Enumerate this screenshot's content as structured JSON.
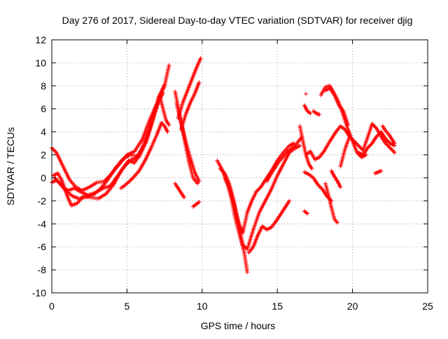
{
  "chart_data": {
    "type": "scatter",
    "title": "Day 276 of 2017, Sidereal Day-to-day VTEC variation (SDTVAR) for receiver djig",
    "xlabel": "GPS time / hours",
    "ylabel": "SDTVAR / TECUs",
    "xlim": [
      0,
      25
    ],
    "ylim": [
      -10,
      12
    ],
    "xticks": [
      "0",
      "5",
      "10",
      "15",
      "20",
      "25"
    ],
    "yticks": [
      "-10",
      "-8",
      "-6",
      "-4",
      "-2",
      "0",
      "2",
      "4",
      "6",
      "8",
      "10",
      "12"
    ],
    "grid": true,
    "marker": "plus",
    "color": "#ff0000",
    "series": [
      {
        "x": [
          0.0,
          0.3,
          0.6,
          0.9,
          1.2,
          1.6,
          2.0,
          2.5,
          3.0,
          3.5,
          4.0,
          4.5,
          5.0,
          5.5,
          6.0,
          6.5,
          7.0,
          7.5,
          7.8
        ],
        "y": [
          2.6,
          2.2,
          1.4,
          0.6,
          -0.2,
          -0.8,
          -1.1,
          -0.8,
          -0.4,
          -0.3,
          0.4,
          1.2,
          2.0,
          2.3,
          3.3,
          5.0,
          6.5,
          8.0,
          9.8
        ]
      },
      {
        "x": [
          0.0,
          0.3,
          0.6,
          1.0,
          1.4,
          1.8,
          2.2,
          2.7,
          3.2,
          3.7,
          4.2,
          4.7,
          5.2,
          5.7,
          6.2,
          6.7,
          7.1,
          7.5
        ],
        "y": [
          -0.4,
          -0.2,
          -0.6,
          -1.2,
          -1.6,
          -1.8,
          -1.7,
          -1.5,
          -1.0,
          -0.2,
          0.8,
          1.6,
          2.0,
          1.9,
          3.0,
          5.0,
          7.0,
          8.1
        ]
      },
      {
        "x": [
          0.1,
          0.4,
          0.7,
          1.0,
          1.3,
          1.7,
          2.1,
          2.6,
          3.1,
          3.6,
          4.1,
          4.6,
          5.1,
          5.5,
          6.0,
          6.5,
          7.0,
          7.4
        ],
        "y": [
          0.2,
          0.4,
          -0.3,
          -1.5,
          -2.4,
          -2.2,
          -1.6,
          -1.7,
          -1.8,
          -1.4,
          -0.6,
          0.6,
          1.5,
          1.3,
          2.5,
          4.5,
          6.3,
          7.4
        ]
      },
      {
        "x": [
          0.2,
          0.5,
          0.8,
          1.1,
          1.5,
          1.9,
          2.4,
          2.9,
          3.4,
          3.9,
          4.4,
          4.9,
          5.3,
          5.8,
          6.3,
          6.8,
          7.2
        ],
        "y": [
          0.0,
          -0.4,
          -0.9,
          -1.1,
          -0.9,
          -1.2,
          -1.5,
          -1.3,
          -0.9,
          -0.7,
          0.2,
          1.1,
          1.6,
          1.8,
          3.2,
          5.4,
          7.2
        ]
      },
      {
        "x": [
          4.6,
          5.0,
          5.4,
          5.8,
          6.2,
          6.6,
          7.0,
          7.3,
          7.5,
          7.7
        ],
        "y": [
          -0.9,
          -0.5,
          0.0,
          0.6,
          1.5,
          2.6,
          3.8,
          4.8,
          4.5,
          4.0
        ]
      },
      {
        "x": [
          7.2,
          7.4,
          7.6,
          7.8
        ],
        "y": [
          7.0,
          6.0,
          5.0,
          4.6
        ]
      },
      {
        "x": [
          8.2,
          8.5,
          8.8,
          9.1,
          9.4,
          9.7
        ],
        "y": [
          7.5,
          5.5,
          3.5,
          1.5,
          0.0,
          -0.5
        ]
      },
      {
        "x": [
          8.3,
          8.6,
          8.9,
          9.2,
          9.5,
          9.8
        ],
        "y": [
          6.5,
          4.8,
          3.2,
          1.8,
          0.5,
          -0.3
        ]
      },
      {
        "x": [
          8.4,
          8.7,
          9.0,
          9.3,
          9.6,
          9.9
        ],
        "y": [
          5.2,
          6.5,
          7.5,
          8.5,
          9.5,
          10.4
        ]
      },
      {
        "x": [
          8.6,
          8.9,
          9.2,
          9.5,
          9.8
        ],
        "y": [
          4.2,
          5.5,
          6.5,
          7.3,
          8.3
        ]
      },
      {
        "x": [
          8.2,
          8.5,
          8.8
        ],
        "y": [
          -0.5,
          -1.1,
          -1.7
        ]
      },
      {
        "x": [
          9.4,
          9.6,
          9.8
        ],
        "y": [
          -2.5,
          -2.3,
          -2.1
        ]
      },
      {
        "x": [
          11.0,
          11.3,
          11.6,
          11.9,
          12.2,
          12.5,
          12.8,
          13.0
        ],
        "y": [
          1.5,
          0.8,
          -0.2,
          -1.5,
          -3.5,
          -5.0,
          -6.5,
          -8.2
        ]
      },
      {
        "x": [
          11.2,
          11.5,
          11.8,
          12.1,
          12.4,
          12.7,
          13.0,
          13.4,
          13.8,
          14.2,
          14.6,
          15.0,
          15.4,
          15.8,
          16.2,
          16.5
        ],
        "y": [
          0.8,
          0.4,
          -0.5,
          -2.0,
          -4.0,
          -5.8,
          -6.2,
          -4.5,
          -3.0,
          -2.0,
          -1.0,
          0.2,
          1.2,
          2.2,
          2.6,
          2.8
        ]
      },
      {
        "x": [
          11.5,
          11.8,
          12.1,
          12.4,
          12.7,
          13.0,
          13.3,
          13.6,
          13.9,
          14.2,
          14.6,
          15.0,
          15.4,
          15.8,
          16.1
        ],
        "y": [
          0.0,
          -0.8,
          -2.2,
          -3.8,
          -4.8,
          -3.0,
          -2.0,
          -1.2,
          -0.8,
          -0.2,
          0.6,
          1.5,
          2.2,
          2.8,
          3.0
        ]
      },
      {
        "x": [
          13.1,
          13.4,
          13.7,
          14.0,
          14.3,
          14.6,
          14.9,
          15.2,
          15.5,
          15.8
        ],
        "y": [
          -6.5,
          -6.0,
          -5.0,
          -4.2,
          -4.5,
          -4.3,
          -3.8,
          -3.2,
          -2.6,
          -2.0
        ]
      },
      {
        "x": [
          14.3,
          14.7,
          15.1,
          15.5,
          15.9,
          16.3,
          16.6
        ],
        "y": [
          -0.3,
          0.6,
          1.4,
          2.0,
          2.5,
          3.0,
          3.5
        ]
      },
      {
        "x": [
          16.5,
          16.7,
          16.9,
          17.1,
          17.3
        ],
        "y": [
          4.5,
          3.2,
          2.0,
          1.2,
          0.8
        ]
      },
      {
        "x": [
          16.8,
          17.1,
          17.4,
          17.7,
          18.0,
          18.3,
          18.6
        ],
        "y": [
          0.5,
          0.3,
          0.0,
          -0.6,
          -1.0,
          -1.6,
          -2.0
        ]
      },
      {
        "x": [
          16.9,
          17.2,
          17.5,
          17.8,
          18.1,
          18.5,
          18.9,
          19.2,
          19.5,
          19.8
        ],
        "y": [
          2.0,
          2.3,
          1.6,
          1.8,
          2.3,
          3.2,
          4.0,
          4.5,
          4.2,
          3.6
        ]
      },
      {
        "x": [
          16.8,
          17.0,
          17.2
        ],
        "y": [
          6.3,
          5.8,
          5.6
        ]
      },
      {
        "x": [
          17.4,
          17.6,
          17.8
        ],
        "y": [
          5.8,
          5.6,
          5.5
        ]
      },
      {
        "x": [
          17.9,
          18.2,
          18.5,
          18.8,
          19.1,
          19.4,
          19.7,
          20.0,
          20.3,
          20.6,
          20.9
        ],
        "y": [
          7.2,
          7.9,
          8.0,
          7.3,
          6.5,
          5.4,
          4.2,
          3.2,
          2.2,
          1.8,
          2.0
        ]
      },
      {
        "x": [
          18.2,
          18.5,
          18.8,
          19.1,
          19.4,
          19.7
        ],
        "y": [
          7.6,
          7.8,
          7.2,
          6.3,
          5.8,
          4.6
        ]
      },
      {
        "x": [
          18.2,
          18.4,
          18.6,
          18.8,
          19.0
        ],
        "y": [
          -0.5,
          -1.5,
          -2.6,
          -3.6,
          -3.9
        ]
      },
      {
        "x": [
          18.6,
          18.8,
          19.0,
          19.2
        ],
        "y": [
          0.6,
          0.1,
          -0.3,
          -0.8
        ]
      },
      {
        "x": [
          19.2,
          19.5,
          19.8,
          20.1,
          20.4,
          20.7,
          21.0,
          21.3,
          21.6,
          21.9,
          22.2,
          22.5,
          22.8
        ],
        "y": [
          1.0,
          2.5,
          3.6,
          3.2,
          2.8,
          2.4,
          3.5,
          4.7,
          4.3,
          3.6,
          3.0,
          2.6,
          2.2
        ]
      },
      {
        "x": [
          20.4,
          20.7,
          21.0,
          21.3,
          21.6,
          21.9,
          22.2,
          22.5,
          22.8
        ],
        "y": [
          2.2,
          2.0,
          2.6,
          3.0,
          3.6,
          4.0,
          3.4,
          3.0,
          2.8
        ]
      },
      {
        "x": [
          21.5,
          21.7,
          21.9
        ],
        "y": [
          0.4,
          0.5,
          0.6
        ]
      },
      {
        "x": [
          22.0,
          22.2,
          22.4,
          22.6,
          22.8
        ],
        "y": [
          4.5,
          4.1,
          3.8,
          3.4,
          3.0
        ]
      },
      {
        "x": [
          16.8,
          17.0
        ],
        "y": [
          -2.9,
          -3.1
        ]
      },
      {
        "x": [
          16.9
        ],
        "y": [
          7.3
        ]
      }
    ]
  }
}
